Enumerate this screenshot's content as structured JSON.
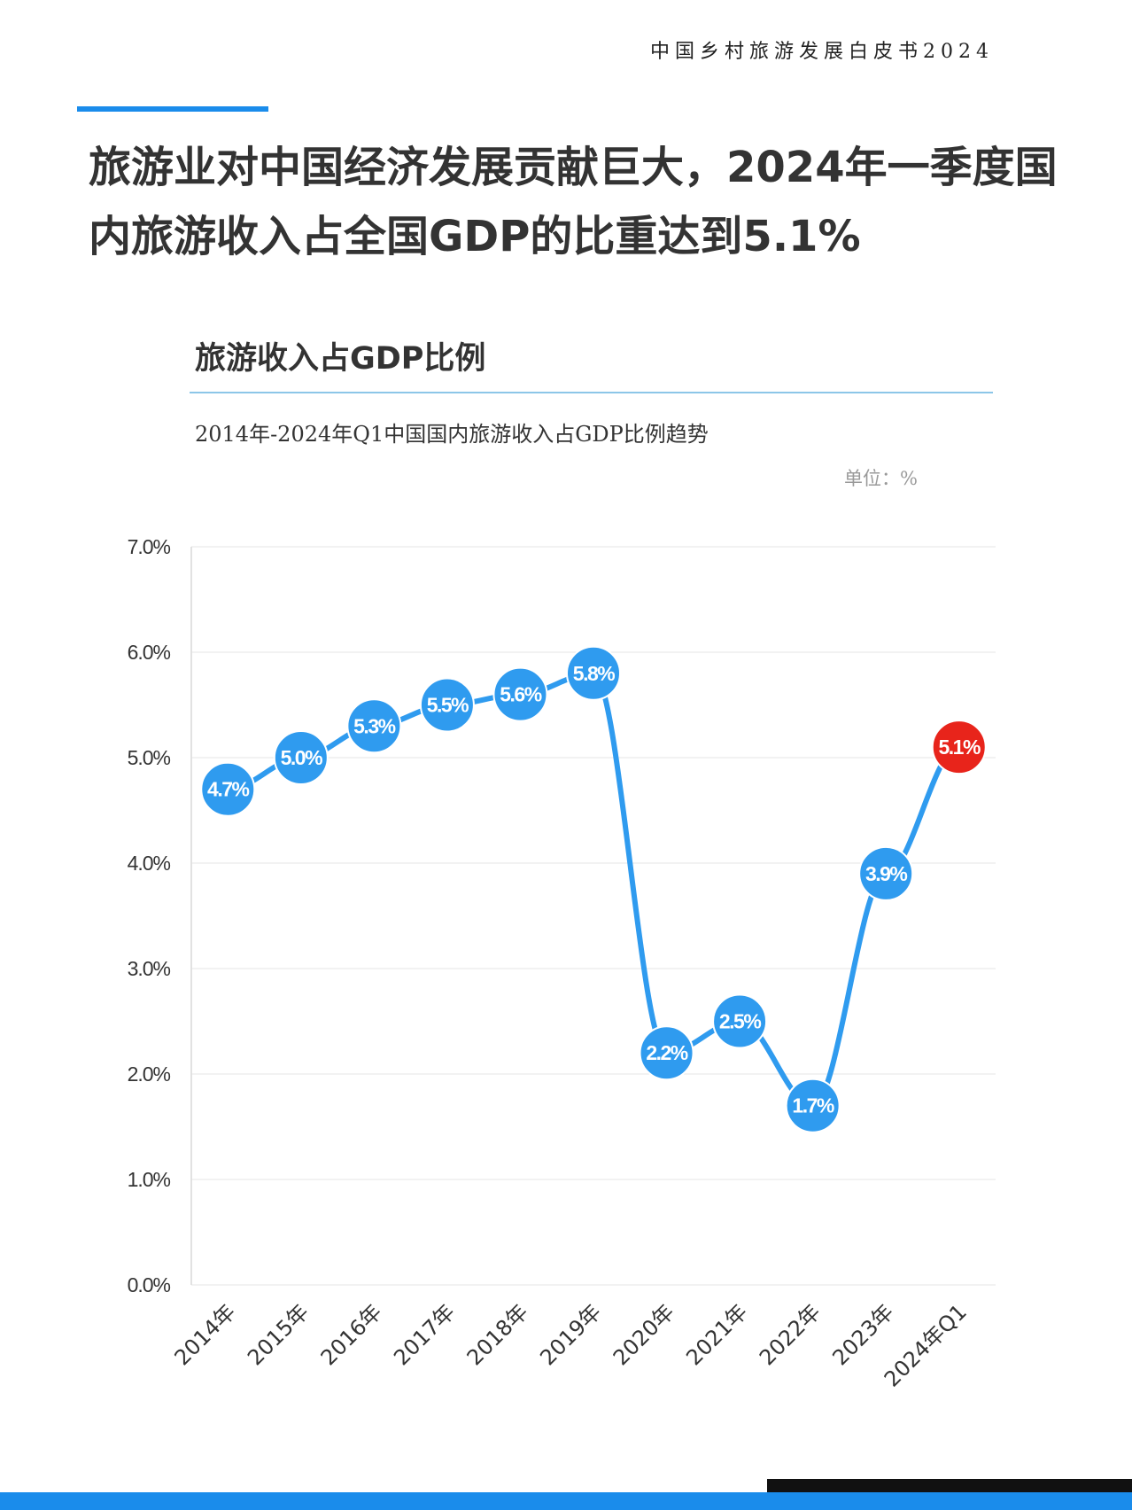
{
  "header": {
    "title": "中国乡村旅游发展白皮书2024"
  },
  "headline": "旅游业对中国经济发展贡献巨大，2024年一季度国内旅游收入占全国GDP的比重达到5.1%",
  "chart_data": {
    "type": "line",
    "title": "旅游收入占GDP比例",
    "subtitle": "2014年-2024年Q1中国国内旅游收入占GDP比例趋势",
    "unit": "单位：%",
    "categories": [
      "2014年",
      "2015年",
      "2016年",
      "2017年",
      "2018年",
      "2019年",
      "2020年",
      "2021年",
      "2022年",
      "2023年",
      "2024年Q1"
    ],
    "series": [
      {
        "values": [
          4.7,
          5.0,
          5.3,
          5.5,
          5.6,
          5.8,
          2.2,
          2.5,
          1.7,
          3.9,
          5.1
        ]
      }
    ],
    "data_labels": [
      "4.7%",
      "5.0%",
      "5.3%",
      "5.5%",
      "5.6%",
      "5.8%",
      "2.2%",
      "2.5%",
      "1.7%",
      "3.9%",
      "5.1%"
    ],
    "y_ticks": [
      "0.0%",
      "1.0%",
      "2.0%",
      "3.0%",
      "4.0%",
      "5.0%",
      "6.0%",
      "7.0%"
    ],
    "ylim": [
      0,
      7
    ],
    "grid": true,
    "colors": {
      "line": "#2f9bef",
      "highlight": "#e8241b",
      "grid": "#e6e6e6",
      "axis_text": "#333333"
    },
    "highlight_index": 10
  }
}
